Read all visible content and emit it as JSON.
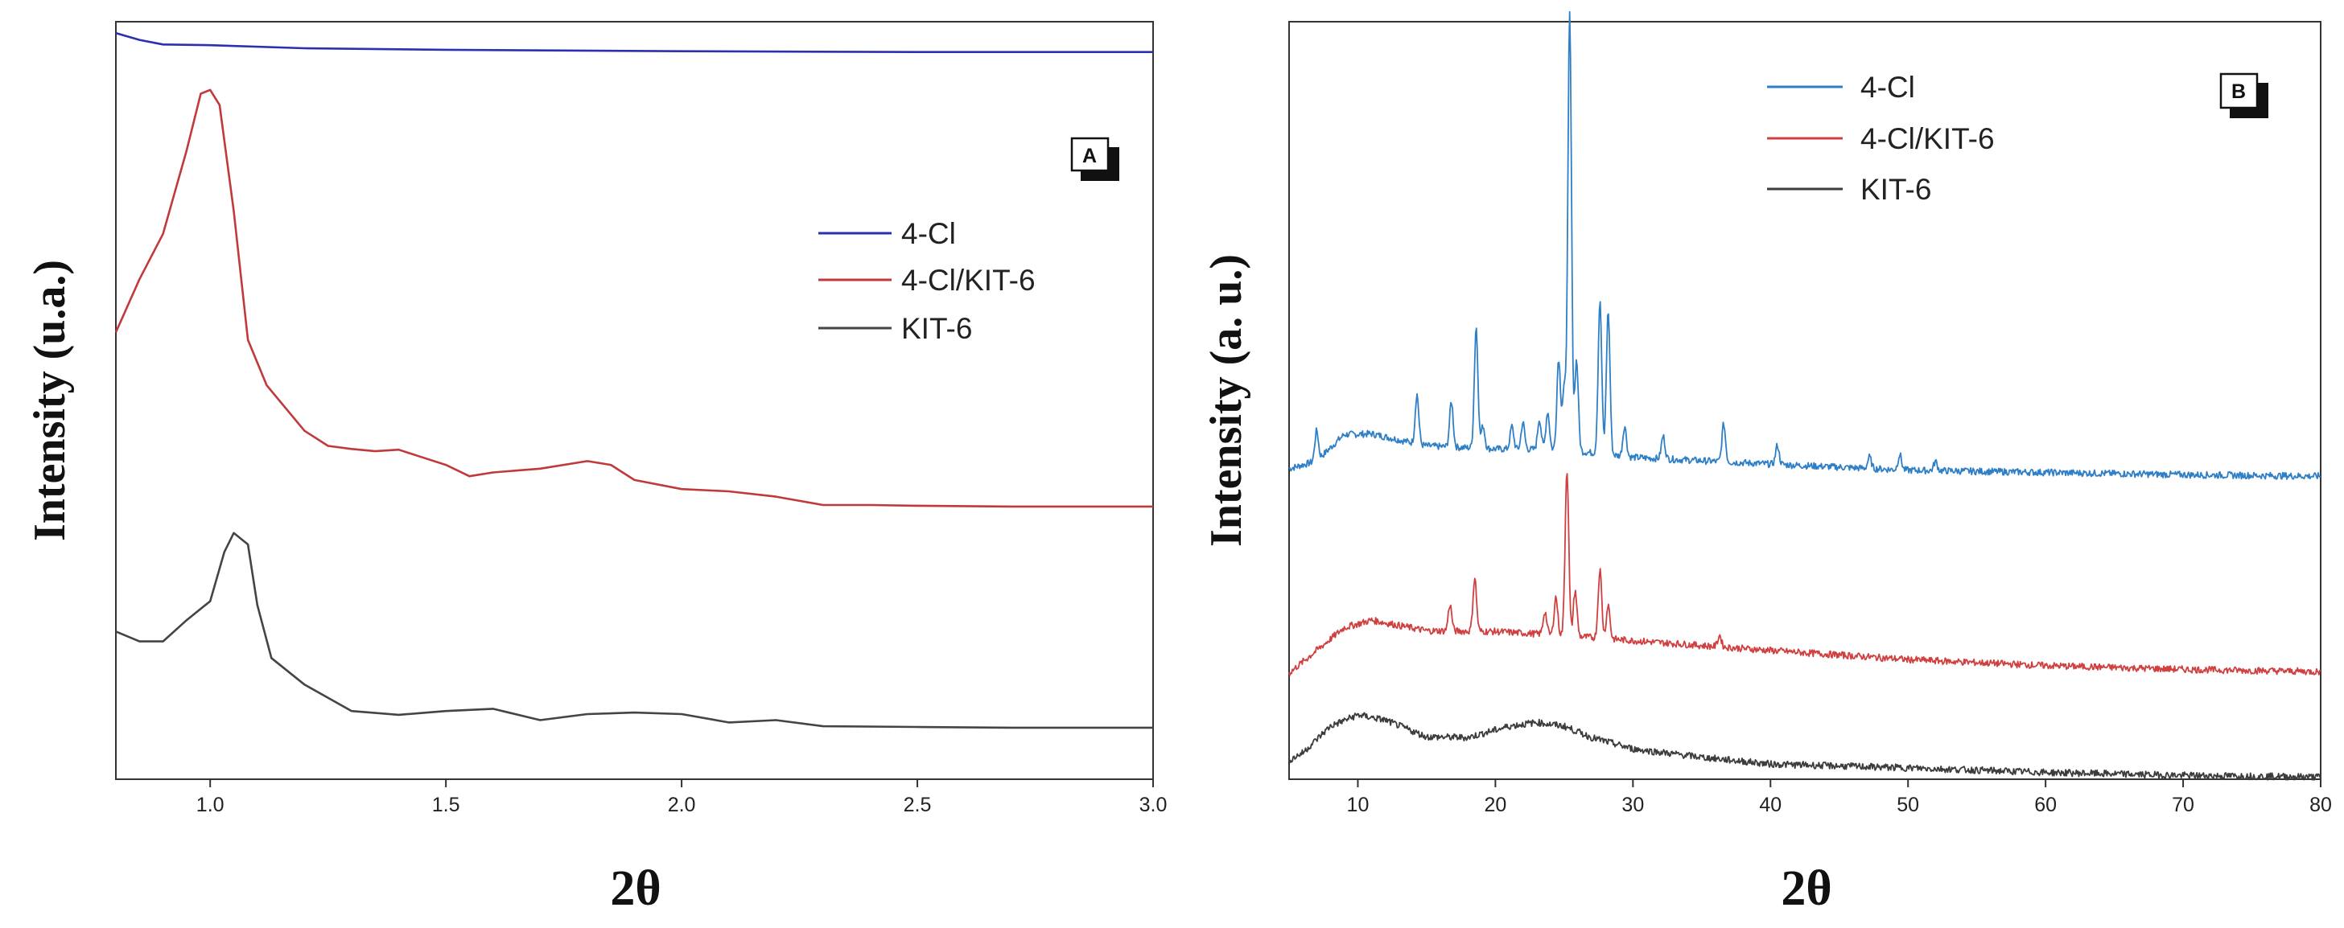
{
  "chart_data": [
    {
      "panel": "A",
      "type": "line",
      "xlabel": "2θ",
      "ylabel": "Intensity (u.a.)",
      "xlim": [
        0.8,
        3.0
      ],
      "ylim": [
        0,
        100
      ],
      "xticks": [
        1.0,
        1.5,
        2.0,
        2.5,
        3.0
      ],
      "xtick_labels": [
        "1.0",
        "1.5",
        "2.0",
        "2.5",
        "3.0"
      ],
      "legend": [
        "4-Cl",
        "4-Cl/KIT-6",
        "KIT-6"
      ],
      "series": [
        {
          "name": "4-Cl",
          "color": "#2b2fb0",
          "points": [
            [
              0.8,
              98.5
            ],
            [
              0.85,
              97.6
            ],
            [
              0.9,
              97.0
            ],
            [
              1.0,
              96.9
            ],
            [
              1.2,
              96.5
            ],
            [
              1.5,
              96.3
            ],
            [
              2.0,
              96.1
            ],
            [
              2.5,
              96.0
            ],
            [
              3.0,
              96.0
            ]
          ]
        },
        {
          "name": "4-Cl/KIT-6",
          "color": "#c0393b",
          "points": [
            [
              0.8,
              59
            ],
            [
              0.85,
              66
            ],
            [
              0.9,
              72
            ],
            [
              0.95,
              83
            ],
            [
              0.98,
              90.5
            ],
            [
              1.0,
              91
            ],
            [
              1.02,
              89
            ],
            [
              1.05,
              75
            ],
            [
              1.08,
              58
            ],
            [
              1.12,
              52
            ],
            [
              1.2,
              46
            ],
            [
              1.25,
              44
            ],
            [
              1.3,
              43.6
            ],
            [
              1.35,
              43.3
            ],
            [
              1.4,
              43.5
            ],
            [
              1.45,
              42.5
            ],
            [
              1.5,
              41.5
            ],
            [
              1.55,
              40
            ],
            [
              1.6,
              40.5
            ],
            [
              1.7,
              41
            ],
            [
              1.8,
              42
            ],
            [
              1.85,
              41.5
            ],
            [
              1.9,
              39.5
            ],
            [
              2.0,
              38.3
            ],
            [
              2.1,
              38
            ],
            [
              2.2,
              37.3
            ],
            [
              2.3,
              36.2
            ],
            [
              2.4,
              36.2
            ],
            [
              2.5,
              36.1
            ],
            [
              2.7,
              36
            ],
            [
              3.0,
              36
            ]
          ]
        },
        {
          "name": "KIT-6",
          "color": "#444444",
          "points": [
            [
              0.8,
              19.5
            ],
            [
              0.85,
              18.2
            ],
            [
              0.9,
              18.2
            ],
            [
              0.95,
              21
            ],
            [
              1.0,
              23.5
            ],
            [
              1.03,
              30
            ],
            [
              1.05,
              32.5
            ],
            [
              1.08,
              31
            ],
            [
              1.1,
              23
            ],
            [
              1.13,
              16
            ],
            [
              1.2,
              12.5
            ],
            [
              1.3,
              9
            ],
            [
              1.4,
              8.5
            ],
            [
              1.5,
              9
            ],
            [
              1.6,
              9.3
            ],
            [
              1.7,
              7.8
            ],
            [
              1.8,
              8.6
            ],
            [
              1.9,
              8.8
            ],
            [
              2.0,
              8.6
            ],
            [
              2.1,
              7.5
            ],
            [
              2.2,
              7.8
            ],
            [
              2.3,
              7.0
            ],
            [
              2.5,
              6.9
            ],
            [
              2.7,
              6.8
            ],
            [
              3.0,
              6.8
            ]
          ]
        }
      ]
    },
    {
      "panel": "B",
      "type": "line",
      "xlabel": "2θ",
      "ylabel": "Intensity (a. u.)",
      "xlim": [
        5,
        80
      ],
      "ylim": [
        0,
        100
      ],
      "xticks": [
        10,
        20,
        30,
        40,
        50,
        60,
        70,
        80
      ],
      "xtick_labels": [
        "10",
        "20",
        "30",
        "40",
        "50",
        "60",
        "70",
        "80"
      ],
      "legend": [
        "4-Cl",
        "4-Cl/KIT-6",
        "KIT-6"
      ],
      "series": [
        {
          "name": "4-Cl",
          "color": "#2f7fc7",
          "baseline": [
            [
              5,
              41
            ],
            [
              7,
              42
            ],
            [
              9,
              45.5
            ],
            [
              11,
              45.6
            ],
            [
              15,
              44
            ],
            [
              20,
              43.6
            ],
            [
              25,
              43.5
            ],
            [
              30,
              42.5
            ],
            [
              40,
              41.6
            ],
            [
              50,
              40.8
            ],
            [
              60,
              40.5
            ],
            [
              70,
              40.2
            ],
            [
              80,
              40.0
            ]
          ],
          "peaks": [
            [
              7,
              4
            ],
            [
              14.3,
              6.5
            ],
            [
              16.8,
              6
            ],
            [
              18.6,
              16
            ],
            [
              19.1,
              3
            ],
            [
              21.2,
              3
            ],
            [
              22.0,
              3.5
            ],
            [
              23.2,
              4
            ],
            [
              23.8,
              5
            ],
            [
              24.6,
              12
            ],
            [
              25.0,
              8
            ],
            [
              25.4,
              57.5
            ],
            [
              25.9,
              12
            ],
            [
              27.6,
              20
            ],
            [
              28.2,
              19
            ],
            [
              29.4,
              4
            ],
            [
              32.2,
              3
            ],
            [
              36.6,
              5
            ],
            [
              40.5,
              2.5
            ],
            [
              47.2,
              1.5
            ],
            [
              49.4,
              2
            ],
            [
              52,
              1.2
            ]
          ]
        },
        {
          "name": "4-Cl/KIT-6",
          "color": "#d04040",
          "baseline": [
            [
              5,
              14
            ],
            [
              7,
              17
            ],
            [
              9,
              20
            ],
            [
              11,
              21
            ],
            [
              15,
              19.6
            ],
            [
              20,
              19.5
            ],
            [
              25,
              19
            ],
            [
              30,
              18.3
            ],
            [
              40,
              17
            ],
            [
              50,
              15.8
            ],
            [
              60,
              15
            ],
            [
              70,
              14.5
            ],
            [
              80,
              14.2
            ]
          ],
          "peaks": [
            [
              16.7,
              3.5
            ],
            [
              18.5,
              7
            ],
            [
              23.6,
              3
            ],
            [
              24.4,
              5
            ],
            [
              25.2,
              22
            ],
            [
              25.8,
              6
            ],
            [
              27.6,
              9
            ],
            [
              28.2,
              4.5
            ],
            [
              36.3,
              1.5
            ]
          ]
        },
        {
          "name": "KIT-6",
          "color": "#3c3c3c",
          "baseline": [
            [
              5,
              2.5
            ],
            [
              6,
              3.5
            ],
            [
              8,
              7
            ],
            [
              10,
              8.5
            ],
            [
              12,
              7.8
            ],
            [
              15,
              5.6
            ],
            [
              18,
              5.5
            ],
            [
              21,
              7
            ],
            [
              23,
              7.5
            ],
            [
              25,
              7
            ],
            [
              27,
              5.5
            ],
            [
              30,
              4
            ],
            [
              35,
              2.9
            ],
            [
              40,
              2
            ],
            [
              50,
              1.5
            ],
            [
              60,
              0.9
            ],
            [
              70,
              0.5
            ],
            [
              80,
              0.3
            ]
          ],
          "peaks": []
        }
      ]
    }
  ]
}
